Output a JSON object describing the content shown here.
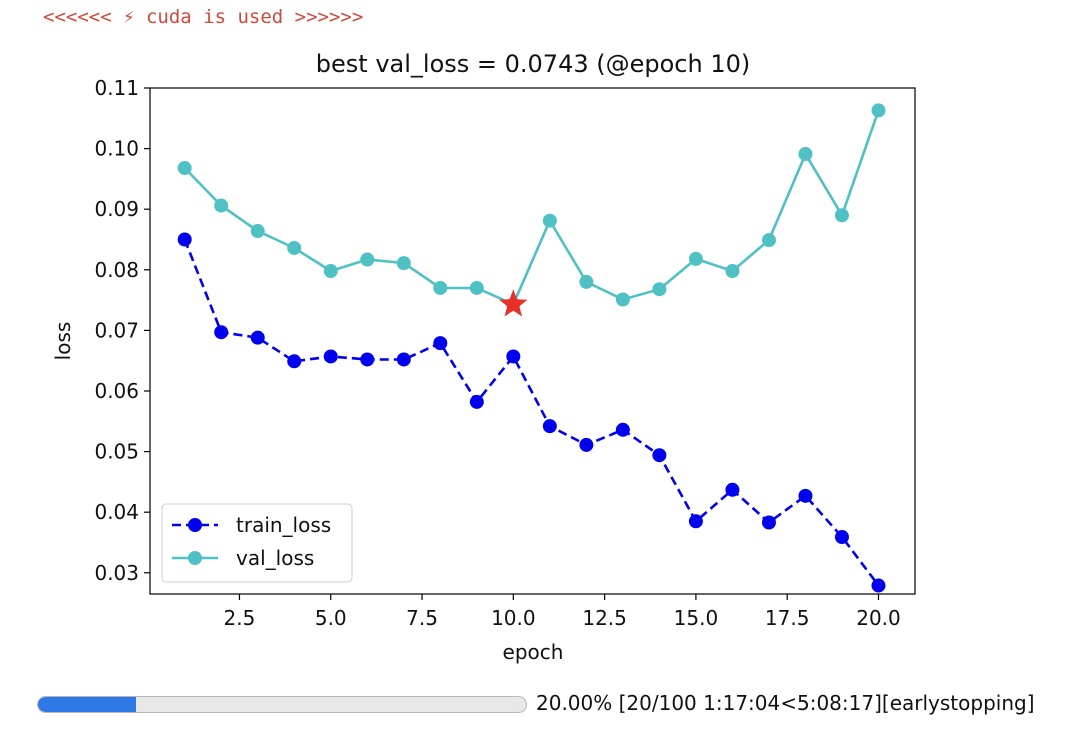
{
  "console": {
    "message": "<<<<<< ⚡ cuda is used >>>>>>"
  },
  "chart_data": {
    "type": "line",
    "title": "best val_loss = 0.0743 (@epoch 10)",
    "xlabel": "epoch",
    "ylabel": "loss",
    "xlim": [
      0.05,
      21.0
    ],
    "ylim": [
      0.0265,
      0.11
    ],
    "xticks": [
      2.5,
      5.0,
      7.5,
      10.0,
      12.5,
      15.0,
      17.5,
      20.0
    ],
    "xtick_labels": [
      "2.5",
      "5.0",
      "7.5",
      "10.0",
      "12.5",
      "15.0",
      "17.5",
      "20.0"
    ],
    "yticks": [
      0.03,
      0.04,
      0.05,
      0.06,
      0.07,
      0.08,
      0.09,
      0.1,
      0.11
    ],
    "ytick_labels": [
      "0.03",
      "0.04",
      "0.05",
      "0.06",
      "0.07",
      "0.08",
      "0.09",
      "0.10",
      "0.11"
    ],
    "grid": false,
    "legend_position": "lower-left",
    "x": [
      1,
      2,
      3,
      4,
      5,
      6,
      7,
      8,
      9,
      10,
      11,
      12,
      13,
      14,
      15,
      16,
      17,
      18,
      19,
      20
    ],
    "series": [
      {
        "name": "train_loss",
        "color": "#0000ee",
        "linestyle": "dashed",
        "marker": "circle",
        "values": [
          0.085,
          0.0697,
          0.0688,
          0.0649,
          0.0657,
          0.0652,
          0.0652,
          0.0679,
          0.0582,
          0.0657,
          0.0542,
          0.0511,
          0.0536,
          0.0494,
          0.0385,
          0.0437,
          0.0383,
          0.0427,
          0.0359,
          0.0279
        ]
      },
      {
        "name": "val_loss",
        "color": "#4fc1c4",
        "linestyle": "solid",
        "marker": "circle",
        "values": [
          0.0968,
          0.0906,
          0.0864,
          0.0836,
          0.0798,
          0.0817,
          0.0811,
          0.077,
          0.077,
          0.0743,
          0.0881,
          0.078,
          0.0751,
          0.0768,
          0.0818,
          0.0798,
          0.0849,
          0.0991,
          0.089,
          0.1063
        ]
      }
    ],
    "best_point": {
      "x": 10,
      "y": 0.0743,
      "marker": "star",
      "color": "#e8302a"
    }
  },
  "progress": {
    "fraction": 0.2,
    "text": "20.00% [20/100 1:17:04<5:08:17][earlystopping]"
  }
}
